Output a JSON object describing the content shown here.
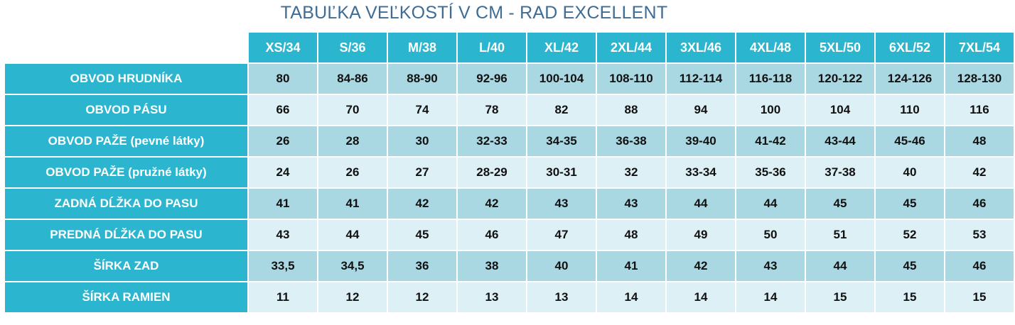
{
  "title": "TABUĽKA VEĽKOSTÍ V CM - RAD EXCELLENT",
  "colors": {
    "header": "#2bb5ce",
    "row_dark": "#a9d8e3",
    "row_light": "#dcf0f5",
    "title": "#3d6d96"
  },
  "columns": [
    "XS/34",
    "S/36",
    "M/38",
    "L/40",
    "XL/42",
    "2XL/44",
    "3XL/46",
    "4XL/48",
    "5XL/50",
    "6XL/52",
    "7XL/54"
  ],
  "rows": [
    {
      "label": "OBVOD HRUDNÍKA",
      "values": [
        "80",
        "84-86",
        "88-90",
        "92-96",
        "100-104",
        "108-110",
        "112-114",
        "116-118",
        "120-122",
        "124-126",
        "128-130"
      ]
    },
    {
      "label": "OBVOD PÁSU",
      "values": [
        "66",
        "70",
        "74",
        "78",
        "82",
        "88",
        "94",
        "100",
        "104",
        "110",
        "116"
      ]
    },
    {
      "label": "OBVOD PAŽE (pevné látky)",
      "values": [
        "26",
        "28",
        "30",
        "32-33",
        "34-35",
        "36-38",
        "39-40",
        "41-42",
        "43-44",
        "45-46",
        "48"
      ]
    },
    {
      "label": "OBVOD PAŽE (pružné látky)",
      "values": [
        "24",
        "26",
        "27",
        "28-29",
        "30-31",
        "32",
        "33-34",
        "35-36",
        "37-38",
        "40",
        "42"
      ]
    },
    {
      "label": "ZADNÁ DĹŽKA DO PASU",
      "values": [
        "41",
        "41",
        "42",
        "42",
        "43",
        "43",
        "44",
        "44",
        "45",
        "45",
        "46"
      ]
    },
    {
      "label": "PREDNÁ DĹŽKA DO PASU",
      "values": [
        "43",
        "44",
        "45",
        "46",
        "47",
        "48",
        "49",
        "50",
        "51",
        "52",
        "53"
      ]
    },
    {
      "label": "ŠÍRKA ZAD",
      "values": [
        "33,5",
        "34,5",
        "36",
        "38",
        "40",
        "41",
        "42",
        "43",
        "44",
        "45",
        "46"
      ]
    },
    {
      "label": "ŠÍRKA RAMIEN",
      "values": [
        "11",
        "12",
        "12",
        "13",
        "13",
        "14",
        "14",
        "14",
        "15",
        "15",
        "15"
      ]
    }
  ]
}
